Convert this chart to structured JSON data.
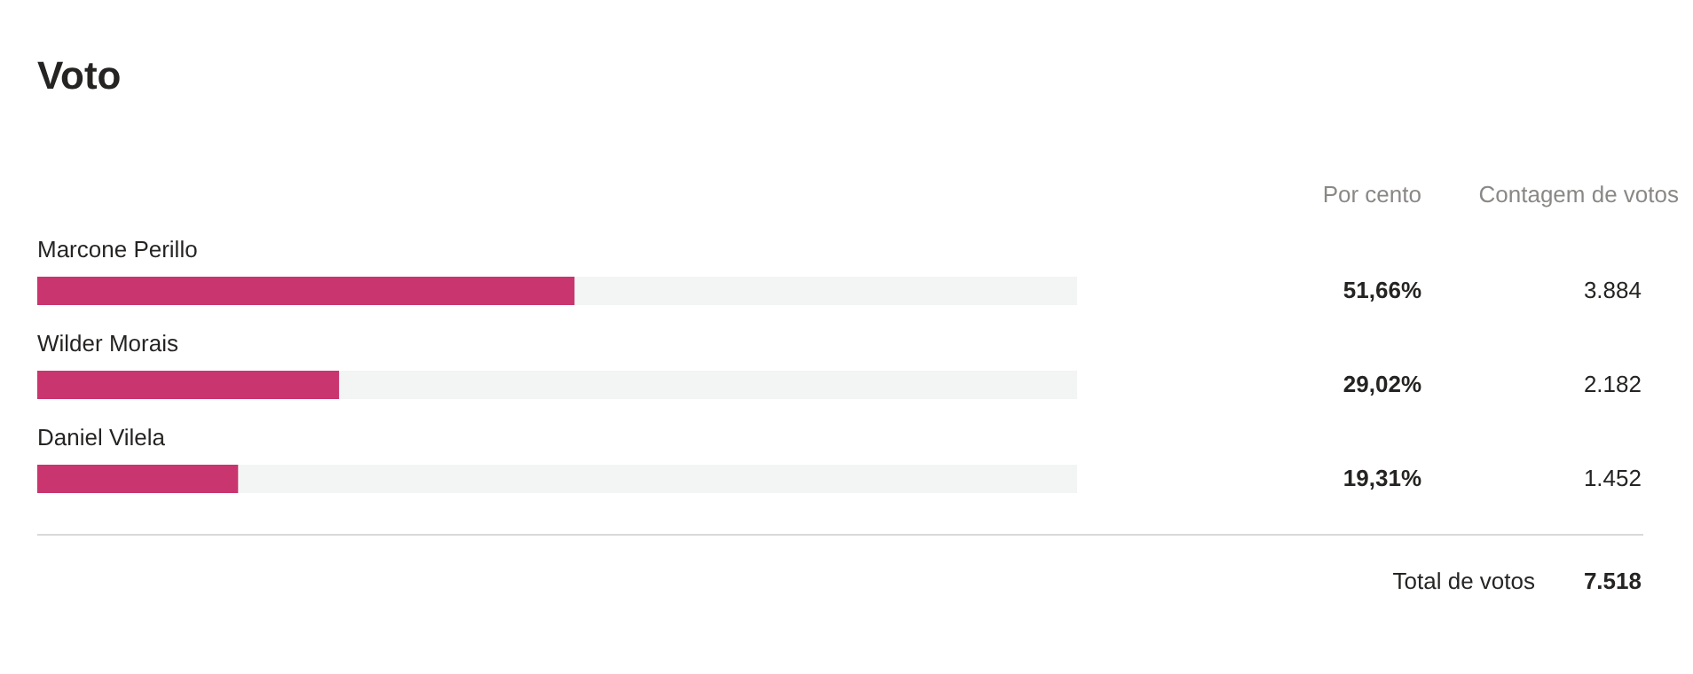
{
  "chart_data": {
    "type": "bar",
    "orientation": "horizontal",
    "title": "Voto",
    "categories": [
      "Marcone Perillo",
      "Wilder Morais",
      "Daniel Vilela"
    ],
    "values": [
      51.66,
      29.02,
      19.31
    ],
    "color": "#c9356e",
    "value_labels": [
      "51,66%",
      "29,02%",
      "19,31%"
    ],
    "xlim": [
      0,
      100
    ],
    "annotations": [
      "Por cento",
      "Contagem de votos",
      "Total de votos",
      "7.518",
      "3.884",
      "2.182",
      "1.452"
    ]
  }
}
